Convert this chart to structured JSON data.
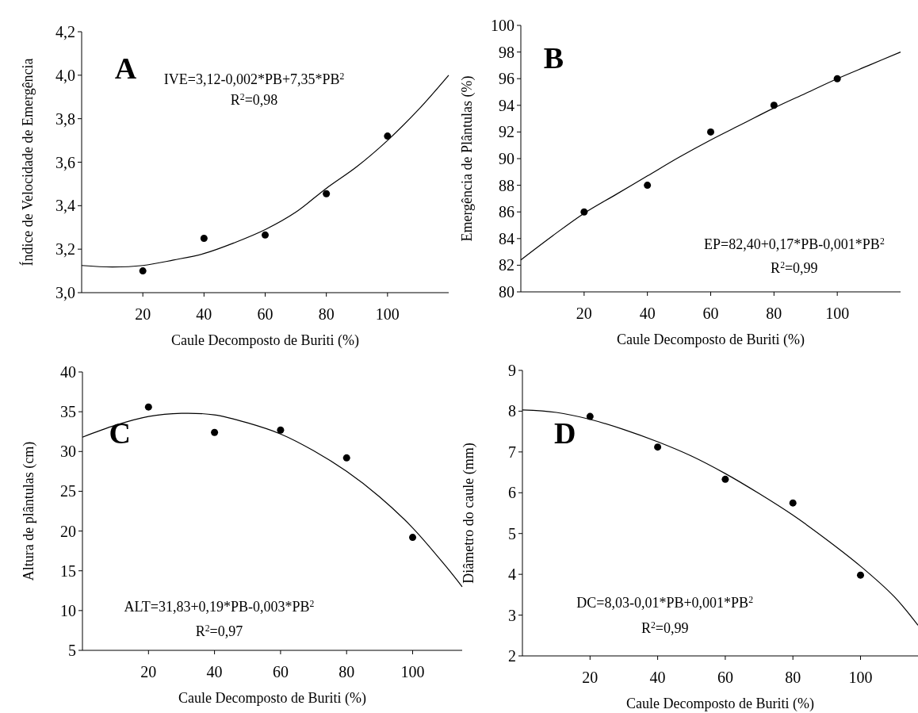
{
  "chart_data": [
    {
      "type": "scatter",
      "xlabel": "Caule Decomposto de Buriti (%)",
      "ylabel": "Índice de Velocidade de Emergência",
      "xlim": [
        0,
        120
      ],
      "xticks": [
        20,
        40,
        60,
        80,
        100
      ],
      "ylim": [
        3,
        4.2
      ],
      "yticks": [
        {
          "value": 3,
          "label": "3,0"
        },
        {
          "value": 3.2,
          "label": "3,2"
        },
        {
          "value": 3.4,
          "label": "3,4"
        },
        {
          "value": 3.6,
          "label": "3,6"
        },
        {
          "value": 3.8,
          "label": "3,8"
        },
        {
          "value": 4,
          "label": "4,0"
        },
        {
          "value": 4.2,
          "label": "4,2"
        }
      ],
      "grid": false,
      "annotations": [
        "A",
        "IVE=3,12-0,002*PB+7,35*PB$^{2}$",
        "R$^{2}$=0,98"
      ],
      "series": [
        {
          "marker": "circle",
          "color": "#000000",
          "x": [
            20,
            40,
            60,
            80,
            100
          ],
          "values": [
            3.1,
            3.25,
            3.265,
            3.455,
            3.72
          ]
        },
        {
          "type": "line",
          "marker": "none",
          "color": "#000000",
          "x": [
            0,
            10,
            20,
            30,
            40,
            50,
            60,
            70,
            80,
            90,
            100,
            110,
            120
          ],
          "values": [
            3.125,
            3.118,
            3.125,
            3.15,
            3.18,
            3.23,
            3.29,
            3.37,
            3.48,
            3.58,
            3.7,
            3.84,
            4.0
          ]
        }
      ]
    },
    {
      "type": "scatter",
      "xlabel": "Caule Decomposto de Buriti (%)",
      "ylabel": "Emergência de Plântulas (%)",
      "xlim": [
        0,
        120
      ],
      "xticks": [
        20,
        40,
        60,
        80,
        100
      ],
      "ylim": [
        80,
        100
      ],
      "yticks": [
        80,
        82,
        84,
        86,
        88,
        90,
        92,
        94,
        96,
        98,
        100
      ],
      "grid": false,
      "annotations": [
        "B",
        "EP=82,40+0,17*PB-0,001*PB$^{2}$",
        "R$^{2}$=0,99"
      ],
      "series": [
        {
          "marker": "circle",
          "color": "#000000",
          "x": [
            20,
            40,
            60,
            80,
            100
          ],
          "values": [
            86,
            88,
            92,
            94,
            96
          ]
        },
        {
          "type": "line",
          "marker": "none",
          "color": "#000000",
          "x": [
            0,
            10,
            20,
            30,
            40,
            50,
            60,
            70,
            80,
            90,
            100,
            110,
            120
          ],
          "values": [
            82.4,
            84.2,
            85.9,
            87.3,
            88.7,
            90.1,
            91.4,
            92.6,
            93.8,
            94.9,
            96.0,
            97.0,
            98.0
          ]
        }
      ]
    },
    {
      "type": "scatter",
      "xlabel": "Caule Decomposto de Buriti (%)",
      "ylabel": "Altura de plântulas (cm)",
      "xlim": [
        0,
        115
      ],
      "xticks": [
        20,
        40,
        60,
        80,
        100
      ],
      "ylim": [
        5,
        40
      ],
      "yticks": [
        5,
        10,
        15,
        20,
        25,
        30,
        35,
        40
      ],
      "grid": false,
      "annotations": [
        "C",
        "ALT=31,83+0,19*PB-0,003*PB$^{2}$",
        "R$^{2}$=0,97"
      ],
      "series": [
        {
          "marker": "circle",
          "color": "#000000",
          "x": [
            20,
            40,
            60,
            80,
            100
          ],
          "values": [
            35.6,
            32.4,
            32.7,
            29.2,
            19.2
          ]
        },
        {
          "type": "line",
          "marker": "none",
          "color": "#000000",
          "x": [
            0,
            10,
            20,
            30,
            40,
            50,
            60,
            70,
            80,
            90,
            100,
            110,
            115
          ],
          "values": [
            31.8,
            33.3,
            34.4,
            34.8,
            34.6,
            33.6,
            32.2,
            30.1,
            27.5,
            24.3,
            20.4,
            15.6,
            13.0
          ]
        }
      ]
    },
    {
      "type": "scatter",
      "xlabel": "Caule Decomposto de Buriti (%)",
      "ylabel": "Diâmetro do caule (mm)",
      "xlim": [
        0,
        117
      ],
      "xticks": [
        20,
        40,
        60,
        80,
        100
      ],
      "ylim": [
        2,
        9
      ],
      "yticks": [
        2,
        3,
        4,
        5,
        6,
        7,
        8,
        9
      ],
      "grid": false,
      "annotations": [
        "D",
        "DC=8,03-0,01*PB+0,001*PB$^{2}$",
        "R$^{2}$=0,99"
      ],
      "series": [
        {
          "marker": "circle",
          "color": "#000000",
          "x": [
            20,
            40,
            60,
            80,
            100
          ],
          "values": [
            7.87,
            7.12,
            6.33,
            5.75,
            3.98
          ]
        },
        {
          "type": "line",
          "marker": "none",
          "color": "#000000",
          "x": [
            0,
            10,
            20,
            30,
            40,
            50,
            60,
            70,
            80,
            90,
            100,
            110,
            117
          ],
          "values": [
            8.03,
            7.97,
            7.8,
            7.55,
            7.25,
            6.9,
            6.47,
            5.98,
            5.45,
            4.85,
            4.2,
            3.45,
            2.75
          ]
        }
      ]
    }
  ]
}
